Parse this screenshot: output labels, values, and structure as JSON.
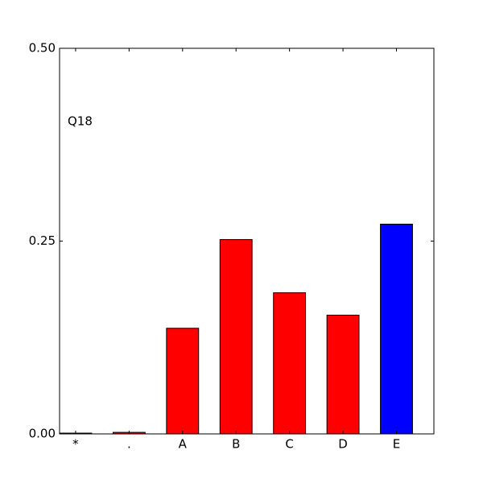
{
  "chart_data": {
    "type": "bar",
    "annotation": "Q18",
    "categories": [
      "*",
      ".",
      "A",
      "B",
      "C",
      "D",
      "E"
    ],
    "values": [
      0.001,
      0.002,
      0.137,
      0.252,
      0.183,
      0.154,
      0.272
    ],
    "colors": [
      "#ff0000",
      "#ff0000",
      "#ff0000",
      "#ff0000",
      "#ff0000",
      "#ff0000",
      "#0000ff"
    ],
    "ylim": [
      0,
      0.5
    ],
    "yticks": [
      {
        "value": 0,
        "label": "0.00"
      },
      {
        "value": 0.25,
        "label": "0.25"
      },
      {
        "value": 0.5,
        "label": "0.50"
      }
    ]
  }
}
